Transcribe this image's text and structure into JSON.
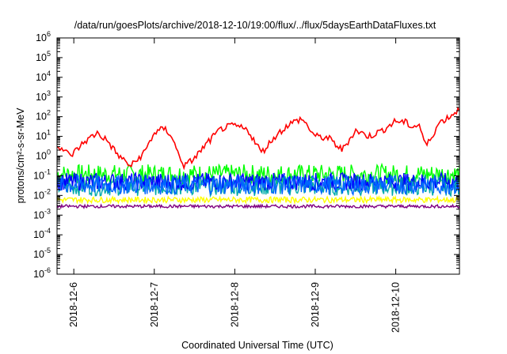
{
  "chart_data": {
    "type": "line",
    "title": "/data/run/goesPlots/archive/2018-12-10/19:00/flux/../flux/5daysEarthDataFluxes.txt",
    "xlabel": "Coordinated Universal Time (UTC)",
    "ylabel": "protons/cm²-s-sr-MeV",
    "y_scale": "log",
    "ylim": [
      1e-06,
      1000000.0
    ],
    "xlim": [
      "2018-12-05T19:00",
      "2018-12-10T19:00"
    ],
    "y_tick_exponents": [
      -6,
      -5,
      -4,
      -3,
      -2,
      -1,
      0,
      1,
      2,
      3,
      4,
      5,
      6
    ],
    "x_ticks": [
      "2018-12-6",
      "2018-12-7",
      "2018-12-8",
      "2018-12-9",
      "2018-12-10"
    ],
    "grid": false,
    "series": [
      {
        "color": "#ff0000",
        "x": [
          "2018-12-05T19:00",
          "2018-12-05T23:00",
          "2018-12-06T03:00",
          "2018-12-06T07:00",
          "2018-12-06T10:00",
          "2018-12-06T13:00",
          "2018-12-06T17:00",
          "2018-12-06T21:00",
          "2018-12-07T00:00",
          "2018-12-07T03:00",
          "2018-12-07T05:00",
          "2018-12-07T07:00",
          "2018-12-07T09:00",
          "2018-12-07T12:00",
          "2018-12-07T16:00",
          "2018-12-07T20:00",
          "2018-12-08T00:00",
          "2018-12-08T04:00",
          "2018-12-08T08:00",
          "2018-12-08T12:00",
          "2018-12-08T16:00",
          "2018-12-08T20:00",
          "2018-12-09T00:00",
          "2018-12-09T04:00",
          "2018-12-09T08:00",
          "2018-12-09T12:00",
          "2018-12-09T16:00",
          "2018-12-09T20:00",
          "2018-12-10T00:00",
          "2018-12-10T03:00",
          "2018-12-10T05:00",
          "2018-12-10T07:00",
          "2018-12-10T09:00",
          "2018-12-10T13:00",
          "2018-12-10T16:00",
          "2018-12-10T19:00"
        ],
        "values": [
          4,
          1.0,
          5,
          15,
          6,
          1.2,
          0.3,
          1.5,
          15,
          25,
          12,
          1.5,
          0.3,
          0.8,
          5,
          25,
          35,
          20,
          1.5,
          10,
          40,
          80,
          10,
          8,
          2,
          20,
          10,
          20,
          60,
          50,
          30,
          40,
          3,
          50,
          100,
          250
        ]
      },
      {
        "color": "#00ff00",
        "level": 0.12,
        "spread": 0.5
      },
      {
        "color": "#00aaaa",
        "level": 0.03,
        "spread": 0.5
      },
      {
        "color": "#0000ff",
        "level": 0.05,
        "spread": 0.45
      },
      {
        "color": "#0066ff",
        "level": 0.035,
        "spread": 0.5
      },
      {
        "color": "#ffff00",
        "level": 0.006,
        "spread": 0.15
      },
      {
        "color": "#800080",
        "level": 0.0028,
        "spread": 0.08
      }
    ]
  }
}
